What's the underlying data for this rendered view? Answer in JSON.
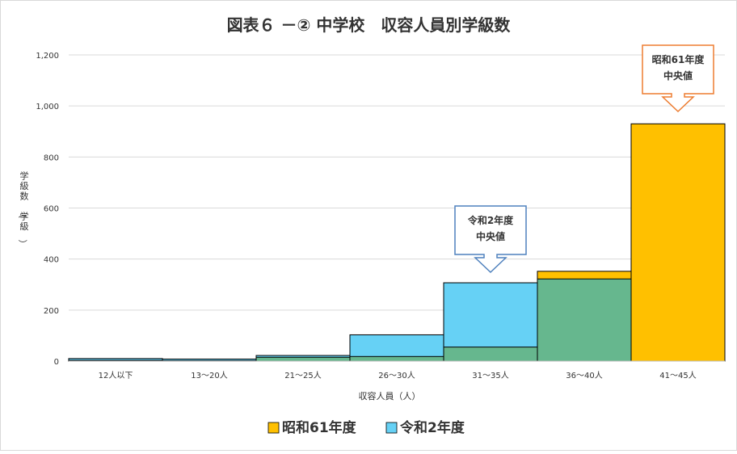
{
  "chart_data": {
    "type": "bar",
    "title": "図表６ －② 中学校　収容人員別学級数",
    "xlabel": "収容人員（人）",
    "ylabel": "学級数（学級）",
    "ylim": [
      0,
      1200
    ],
    "yticks": [
      0,
      200,
      400,
      600,
      800,
      1000,
      1200
    ],
    "ytick_labels": [
      "0",
      "200",
      "400",
      "600",
      "800",
      "1,000",
      "1,200"
    ],
    "categories": [
      "12人以下",
      "13～20人",
      "21～25人",
      "26～30人",
      "31～35人",
      "36～40人",
      "41～45人"
    ],
    "series": [
      {
        "name": "昭和61年度",
        "color": "#FFC000",
        "values": [
          3,
          2,
          15,
          18,
          55,
          352,
          930
        ]
      },
      {
        "name": "令和2年度",
        "color": "#66D1F5",
        "values": [
          10,
          8,
          22,
          103,
          307,
          322,
          0
        ]
      }
    ],
    "overlap_color": "#66B78E",
    "grid": true,
    "legend_position": "bottom",
    "annotations": [
      {
        "lines": [
          "令和2年度",
          "中央値"
        ],
        "category": "31～35人",
        "border_color": "#4F81BD"
      },
      {
        "lines": [
          "昭和61年度",
          "中央値"
        ],
        "category": "41～45人",
        "border_color": "#ED7D31"
      }
    ]
  }
}
